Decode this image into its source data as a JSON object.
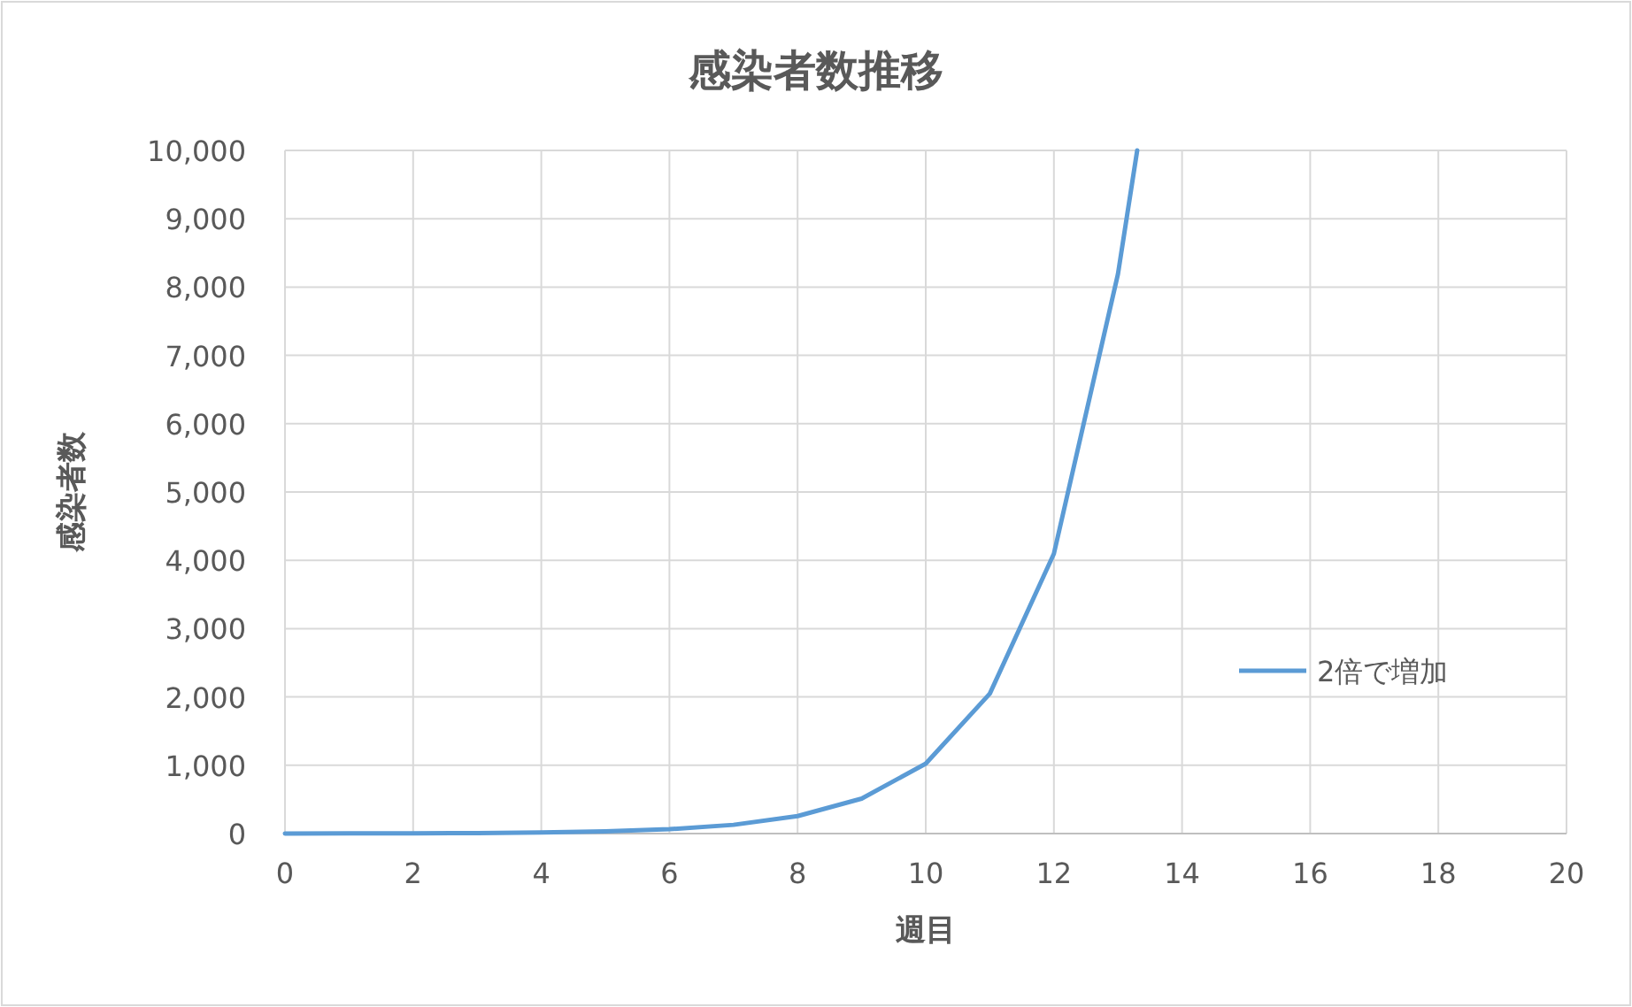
{
  "chart_data": {
    "type": "line",
    "title": "感染者数推移",
    "xlabel": "週目",
    "ylabel": "感染者数",
    "x": [
      0,
      1,
      2,
      3,
      4,
      5,
      6,
      7,
      8,
      9,
      10,
      11,
      12,
      13,
      13.3
    ],
    "series": [
      {
        "name": "2倍で増加",
        "color": "#5b9bd5",
        "values": [
          1,
          2,
          4,
          8,
          16,
          32,
          64,
          128,
          256,
          512,
          1024,
          2048,
          4096,
          8192,
          10000
        ]
      }
    ],
    "xlim": [
      0,
      20
    ],
    "xticks": [
      0,
      2,
      4,
      6,
      8,
      10,
      12,
      14,
      16,
      18,
      20
    ],
    "ylim": [
      0,
      10000
    ],
    "yticks": [
      {
        "value": 0,
        "label": "0"
      },
      {
        "value": 1000,
        "label": "1,000"
      },
      {
        "value": 2000,
        "label": "2,000"
      },
      {
        "value": 3000,
        "label": "3,000"
      },
      {
        "value": 4000,
        "label": "4,000"
      },
      {
        "value": 5000,
        "label": "5,000"
      },
      {
        "value": 6000,
        "label": "6,000"
      },
      {
        "value": 7000,
        "label": "7,000"
      },
      {
        "value": 8000,
        "label": "8,000"
      },
      {
        "value": 9000,
        "label": "9,000"
      },
      {
        "value": 10000,
        "label": "10,000"
      }
    ],
    "grid": true,
    "legend": "right",
    "marker": "none",
    "line_style": "solid"
  }
}
